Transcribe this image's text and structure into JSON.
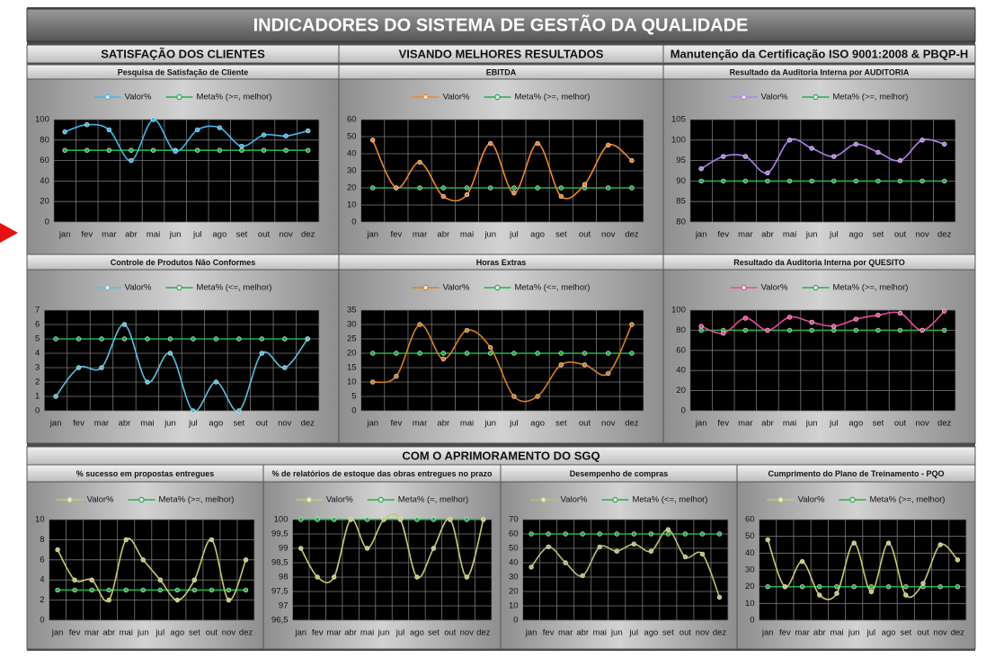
{
  "header": {
    "title": "INDICADORES DO SISTEMA DE GESTÃO DA QUALIDADE"
  },
  "sections": [
    "SATISFAÇÃO DOS CLIENTES",
    "VISANDO MELHORES RESULTADOS",
    "Manutenção da Certificação ISO 9001:2008 & PBQP-H",
    "COM O APRIMORAMENTO DO SGQ"
  ],
  "chart_data": [
    {
      "type": "line",
      "title": "Pesquisa de Satisfação de Cliente",
      "legend": "top",
      "grid": true,
      "categories": [
        "jan",
        "fev",
        "mar",
        "abr",
        "mai",
        "jun",
        "jul",
        "ago",
        "set",
        "out",
        "nov",
        "dez"
      ],
      "ylim": [
        0,
        100
      ],
      "yticks": [
        0,
        20,
        40,
        60,
        80,
        100
      ],
      "series": [
        {
          "name": "Valor%",
          "color": "#3fb8ec",
          "values": [
            88,
            95,
            90,
            60,
            100,
            69,
            90,
            92,
            74,
            85,
            84,
            89
          ]
        },
        {
          "name": "Meta% (>=, melhor)",
          "color": "#22b04a",
          "values": [
            70,
            70,
            70,
            70,
            70,
            70,
            70,
            70,
            70,
            70,
            70,
            70
          ]
        }
      ]
    },
    {
      "type": "line",
      "title": "EBITDA",
      "legend": "top",
      "grid": true,
      "categories": [
        "jan",
        "fev",
        "mar",
        "abr",
        "mai",
        "jun",
        "jul",
        "ago",
        "set",
        "out",
        "nov",
        "dez"
      ],
      "ylim": [
        0,
        60
      ],
      "yticks": [
        0,
        10,
        20,
        30,
        40,
        50,
        60
      ],
      "series": [
        {
          "name": "Valor%",
          "color": "#f0872a",
          "values": [
            48,
            20,
            35,
            15,
            16,
            46,
            17,
            46,
            15,
            22,
            45,
            36
          ]
        },
        {
          "name": "Meta% (>=, melhor)",
          "color": "#22b04a",
          "values": [
            20,
            20,
            20,
            20,
            20,
            20,
            20,
            20,
            20,
            20,
            20,
            20
          ]
        }
      ]
    },
    {
      "type": "line",
      "title": "Resultado da Auditoria Interna por AUDITORIA",
      "legend": "top",
      "grid": true,
      "categories": [
        "jan",
        "fev",
        "mar",
        "abr",
        "mai",
        "jun",
        "jul",
        "ago",
        "set",
        "out",
        "nov",
        "dez"
      ],
      "ylim": [
        80,
        105
      ],
      "yticks": [
        80,
        85,
        90,
        95,
        100,
        105
      ],
      "series": [
        {
          "name": "Valor%",
          "color": "#b57ef0",
          "values": [
            93,
            96,
            96,
            92,
            100,
            98,
            96,
            99,
            97,
            95,
            100,
            99
          ]
        },
        {
          "name": "Meta% (>=, melhor)",
          "color": "#22b04a",
          "values": [
            90,
            90,
            90,
            90,
            90,
            90,
            90,
            90,
            90,
            90,
            90,
            90
          ]
        }
      ]
    },
    {
      "type": "line",
      "title": "Controle de Produtos Não Conformes",
      "legend": "top",
      "grid": true,
      "categories": [
        "jan",
        "fev",
        "mar",
        "abr",
        "mai",
        "jun",
        "jul",
        "ago",
        "set",
        "out",
        "nov",
        "dez"
      ],
      "ylim": [
        0,
        7
      ],
      "yticks": [
        0,
        1,
        2,
        3,
        4,
        5,
        6,
        7
      ],
      "series": [
        {
          "name": "Valor%",
          "color": "#5ac2dc",
          "values": [
            1,
            3,
            3,
            6,
            2,
            4,
            0,
            2,
            0,
            4,
            3,
            5
          ]
        },
        {
          "name": "Meta% (<=, melhor)",
          "color": "#22b04a",
          "values": [
            5,
            5,
            5,
            5,
            5,
            5,
            5,
            5,
            5,
            5,
            5,
            5
          ]
        }
      ]
    },
    {
      "type": "line",
      "title": "Horas Extras",
      "legend": "top",
      "grid": true,
      "categories": [
        "jan",
        "fev",
        "mar",
        "abr",
        "mai",
        "jun",
        "jul",
        "ago",
        "set",
        "out",
        "nov",
        "dez"
      ],
      "ylim": [
        0,
        35
      ],
      "yticks": [
        0,
        5,
        10,
        15,
        20,
        25,
        30,
        35
      ],
      "series": [
        {
          "name": "Valor%",
          "color": "#d9801e",
          "values": [
            10,
            12,
            30,
            18,
            28,
            22,
            5,
            5,
            16,
            16,
            13,
            30
          ]
        },
        {
          "name": "Meta% (<=, melhor)",
          "color": "#22b04a",
          "values": [
            20,
            20,
            20,
            20,
            20,
            20,
            20,
            20,
            20,
            20,
            20,
            20
          ]
        }
      ]
    },
    {
      "type": "line",
      "title": "Resultado da Auditoria Interna por QUESITO",
      "legend": "top",
      "grid": true,
      "categories": [
        "jan",
        "fev",
        "mar",
        "abr",
        "mai",
        "jun",
        "jul",
        "ago",
        "set",
        "out",
        "nov",
        "dez"
      ],
      "ylim": [
        0,
        100
      ],
      "yticks": [
        0,
        20,
        40,
        60,
        80,
        100
      ],
      "series": [
        {
          "name": "Valor%",
          "color": "#e84a9c",
          "values": [
            84,
            77,
            92,
            80,
            93,
            88,
            84,
            91,
            95,
            97,
            80,
            99
          ]
        },
        {
          "name": "Meta% (>=, melhor)",
          "color": "#22b04a",
          "values": [
            80,
            80,
            80,
            80,
            80,
            80,
            80,
            80,
            80,
            80,
            80,
            80
          ]
        }
      ]
    },
    {
      "type": "line",
      "title": "% sucesso em propostas entregues",
      "legend": "top",
      "grid": true,
      "categories": [
        "jan",
        "fev",
        "mar",
        "abr",
        "mai",
        "jun",
        "jul",
        "ago",
        "set",
        "out",
        "nov",
        "dez"
      ],
      "ylim": [
        0,
        10
      ],
      "yticks": [
        0,
        2,
        4,
        6,
        8,
        10
      ],
      "series": [
        {
          "name": "Valor%",
          "color": "#c9c96a",
          "values": [
            7,
            4,
            4,
            2,
            8,
            6,
            4,
            2,
            4,
            8,
            2,
            6
          ]
        },
        {
          "name": "Meta% (>=, melhor)",
          "color": "#22b04a",
          "values": [
            3,
            3,
            3,
            3,
            3,
            3,
            3,
            3,
            3,
            3,
            3,
            3
          ]
        }
      ]
    },
    {
      "type": "line",
      "title": "% de relatórios de estoque das obras entregues no prazo",
      "legend": "top",
      "grid": true,
      "categories": [
        "jan",
        "fev",
        "mar",
        "abr",
        "mai",
        "jun",
        "jul",
        "ago",
        "set",
        "out",
        "nov",
        "dez"
      ],
      "ylim": [
        96.5,
        100
      ],
      "yticks": [
        {
          "value": 96.5,
          "label": "96,5"
        },
        97,
        {
          "value": 97.5,
          "label": "97,5"
        },
        98,
        {
          "value": 98.5,
          "label": "98,5"
        },
        99,
        {
          "value": 99.5,
          "label": "99,5"
        },
        100
      ],
      "series": [
        {
          "name": "Valor%",
          "color": "#c9c96a",
          "values": [
            99,
            98,
            98,
            100,
            99,
            100,
            100,
            98,
            99,
            100,
            98,
            100
          ]
        },
        {
          "name": "Meta% (=, melhor)",
          "color": "#22b04a",
          "values": [
            100,
            100,
            100,
            100,
            100,
            100,
            100,
            100,
            100,
            100,
            100,
            100
          ]
        }
      ]
    },
    {
      "type": "line",
      "title": "Desempenho de compras",
      "legend": "top",
      "grid": true,
      "categories": [
        "jan",
        "fev",
        "mar",
        "abr",
        "mai",
        "jun",
        "jul",
        "ago",
        "set",
        "out",
        "nov",
        "dez"
      ],
      "ylim": [
        0,
        70
      ],
      "yticks": [
        0,
        10,
        20,
        30,
        40,
        50,
        60,
        70
      ],
      "series": [
        {
          "name": "Valor%",
          "color": "#b5c070",
          "values": [
            37,
            51,
            40,
            31,
            51,
            48,
            53,
            48,
            63,
            44,
            46,
            16
          ]
        },
        {
          "name": "Meta% (<=, melhor)",
          "color": "#22b04a",
          "values": [
            60,
            60,
            60,
            60,
            60,
            60,
            60,
            60,
            60,
            60,
            60,
            60
          ]
        }
      ]
    },
    {
      "type": "line",
      "title": "Cumprimento do Plano de Treinamento - PQO",
      "legend": "top",
      "grid": true,
      "categories": [
        "jan",
        "fev",
        "mar",
        "abr",
        "mai",
        "jun",
        "jul",
        "ago",
        "set",
        "out",
        "nov",
        "dez"
      ],
      "ylim": [
        0,
        60
      ],
      "yticks": [
        0,
        10,
        20,
        30,
        40,
        50,
        60
      ],
      "series": [
        {
          "name": "Valor%",
          "color": "#c9c96a",
          "values": [
            48,
            20,
            35,
            15,
            16,
            46,
            17,
            46,
            15,
            22,
            45,
            36
          ]
        },
        {
          "name": "Meta% (>=, melhor)",
          "color": "#22b04a",
          "values": [
            20,
            20,
            20,
            20,
            20,
            20,
            20,
            20,
            20,
            20,
            20,
            20
          ]
        }
      ]
    }
  ]
}
